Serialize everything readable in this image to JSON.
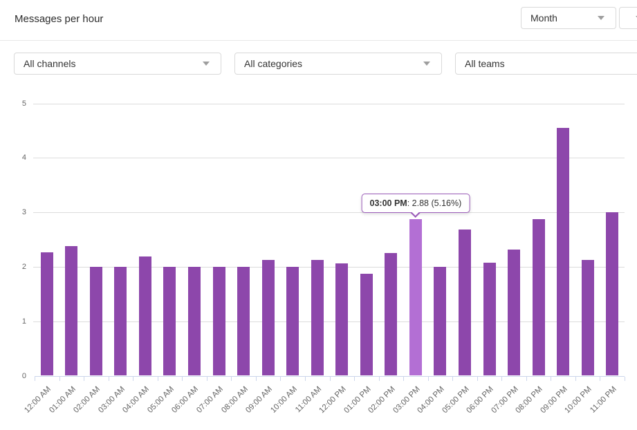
{
  "header": {
    "title": "Messages per hour",
    "period_select": {
      "value": "Month"
    }
  },
  "filters": {
    "channels": {
      "value": "All channels"
    },
    "categories": {
      "value": "All categories"
    },
    "teams": {
      "value": "All teams"
    }
  },
  "chart_data": {
    "type": "bar",
    "title": "Messages per hour",
    "categories": [
      "12:00 AM",
      "01:00 AM",
      "02:00 AM",
      "03:00 AM",
      "04:00 AM",
      "05:00 AM",
      "06:00 AM",
      "07:00 AM",
      "08:00 AM",
      "09:00 AM",
      "10:00 AM",
      "11:00 AM",
      "12:00 PM",
      "01:00 PM",
      "02:00 PM",
      "03:00 PM",
      "04:00 PM",
      "05:00 PM",
      "06:00 PM",
      "07:00 PM",
      "08:00 PM",
      "09:00 PM",
      "10:00 PM",
      "11:00 PM"
    ],
    "values": [
      2.26,
      2.38,
      2.0,
      2.0,
      2.19,
      2.0,
      2.0,
      2.0,
      2.0,
      2.12,
      2.0,
      2.12,
      2.06,
      1.87,
      2.25,
      2.88,
      2.0,
      2.68,
      2.07,
      2.31,
      2.87,
      4.55,
      2.12,
      3.0
    ],
    "xlabel": "",
    "ylabel": "",
    "ylim": [
      0,
      5
    ],
    "yticks": [
      0,
      1,
      2,
      3,
      4,
      5
    ],
    "grid": true,
    "legend": false,
    "highlight_index": 15,
    "tooltip": {
      "label": "03:00 PM",
      "value": 2.88,
      "percent": 5.16,
      "value_text": ": 2.88 (5.16%)"
    },
    "colors": {
      "bar": "#8d47ab",
      "bar_hover": "#b36fd4",
      "tooltip_border": "#9a5ab8"
    }
  }
}
